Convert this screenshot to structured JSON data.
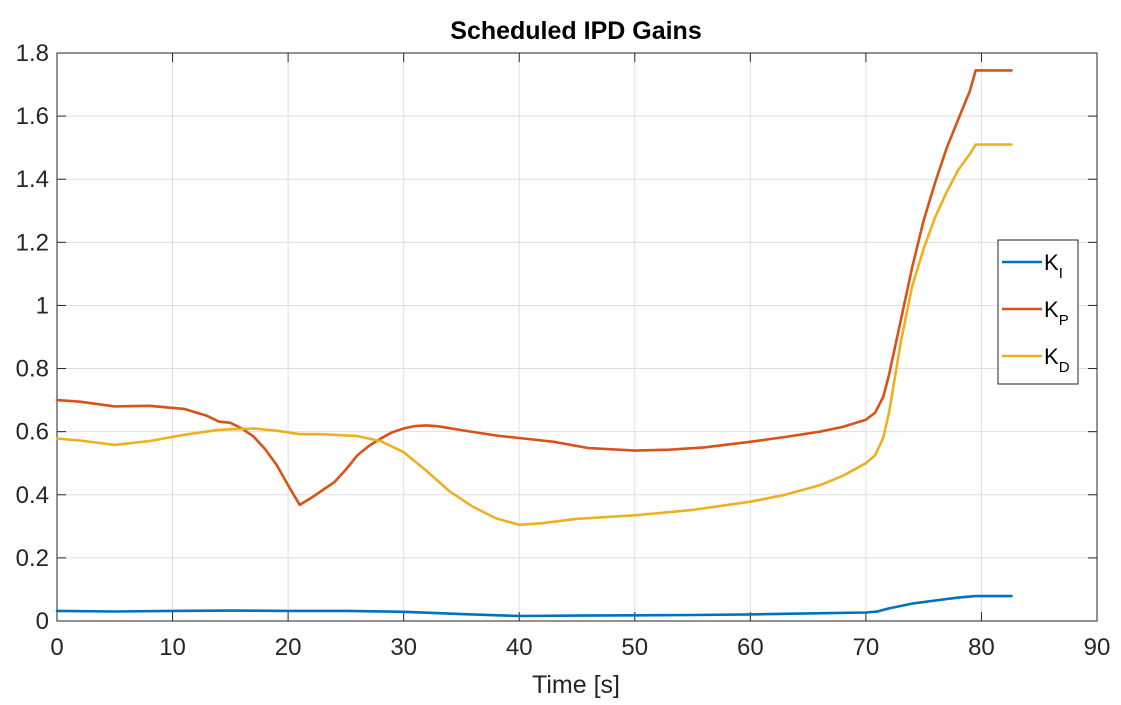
{
  "chart_data": {
    "type": "line",
    "title": "Scheduled IPD Gains",
    "xlabel": "Time [s]",
    "ylabel": "",
    "xlim": [
      0,
      90
    ],
    "ylim": [
      0,
      1.8
    ],
    "xticks": [
      0,
      10,
      20,
      30,
      40,
      50,
      60,
      70,
      80,
      90
    ],
    "yticks": [
      0,
      0.2,
      0.4,
      0.6,
      0.8,
      1,
      1.2,
      1.4,
      1.6,
      1.8
    ],
    "grid": true,
    "legend_position": "right",
    "series": [
      {
        "name": "K_I",
        "label_main": "K",
        "label_sub": "I",
        "color": "#0072BD",
        "x": [
          0,
          5,
          10,
          15,
          20,
          25,
          30,
          35,
          40,
          45,
          50,
          55,
          60,
          65,
          70,
          71,
          72,
          74,
          76,
          78,
          79.5,
          82.6
        ],
        "y": [
          0.032,
          0.03,
          0.032,
          0.033,
          0.032,
          0.032,
          0.029,
          0.022,
          0.016,
          0.017,
          0.018,
          0.019,
          0.021,
          0.024,
          0.027,
          0.03,
          0.04,
          0.055,
          0.065,
          0.074,
          0.079,
          0.079
        ]
      },
      {
        "name": "K_P",
        "label_main": "K",
        "label_sub": "P",
        "color": "#D95319",
        "x": [
          0,
          2,
          5,
          8,
          11,
          13,
          14,
          15,
          16,
          17,
          18,
          19,
          20,
          21,
          22,
          23,
          24,
          25,
          26,
          27,
          28,
          29,
          30,
          31,
          32,
          33,
          35,
          38,
          40,
          43,
          46,
          50,
          53,
          56,
          60,
          63,
          66,
          68,
          70,
          70.8,
          71.5,
          72,
          73,
          74,
          75,
          76,
          77,
          78,
          79,
          79.5,
          82.6
        ],
        "y": [
          0.7,
          0.695,
          0.68,
          0.682,
          0.672,
          0.65,
          0.632,
          0.628,
          0.61,
          0.585,
          0.545,
          0.495,
          0.43,
          0.368,
          0.39,
          0.415,
          0.44,
          0.48,
          0.525,
          0.555,
          0.578,
          0.598,
          0.61,
          0.618,
          0.62,
          0.617,
          0.605,
          0.588,
          0.58,
          0.568,
          0.548,
          0.54,
          0.543,
          0.55,
          0.568,
          0.583,
          0.6,
          0.615,
          0.638,
          0.66,
          0.71,
          0.78,
          0.95,
          1.12,
          1.27,
          1.39,
          1.5,
          1.59,
          1.68,
          1.745,
          1.745
        ]
      },
      {
        "name": "K_D",
        "label_main": "K",
        "label_sub": "D",
        "color": "#EDB120",
        "x": [
          0,
          2,
          5,
          8,
          11,
          14,
          17,
          19,
          21,
          23,
          26,
          28,
          30,
          32,
          34,
          36,
          38,
          40,
          42,
          45,
          50,
          55,
          60,
          63,
          66,
          68,
          70,
          70.8,
          71.5,
          72,
          73,
          74,
          75,
          76,
          77,
          78,
          79,
          79.5,
          82.6
        ],
        "y": [
          0.578,
          0.572,
          0.558,
          0.57,
          0.59,
          0.606,
          0.61,
          0.603,
          0.592,
          0.592,
          0.586,
          0.57,
          0.535,
          0.475,
          0.41,
          0.362,
          0.325,
          0.305,
          0.31,
          0.324,
          0.335,
          0.352,
          0.378,
          0.4,
          0.43,
          0.46,
          0.5,
          0.525,
          0.58,
          0.66,
          0.88,
          1.06,
          1.18,
          1.28,
          1.36,
          1.43,
          1.48,
          1.51,
          1.51
        ]
      }
    ]
  }
}
